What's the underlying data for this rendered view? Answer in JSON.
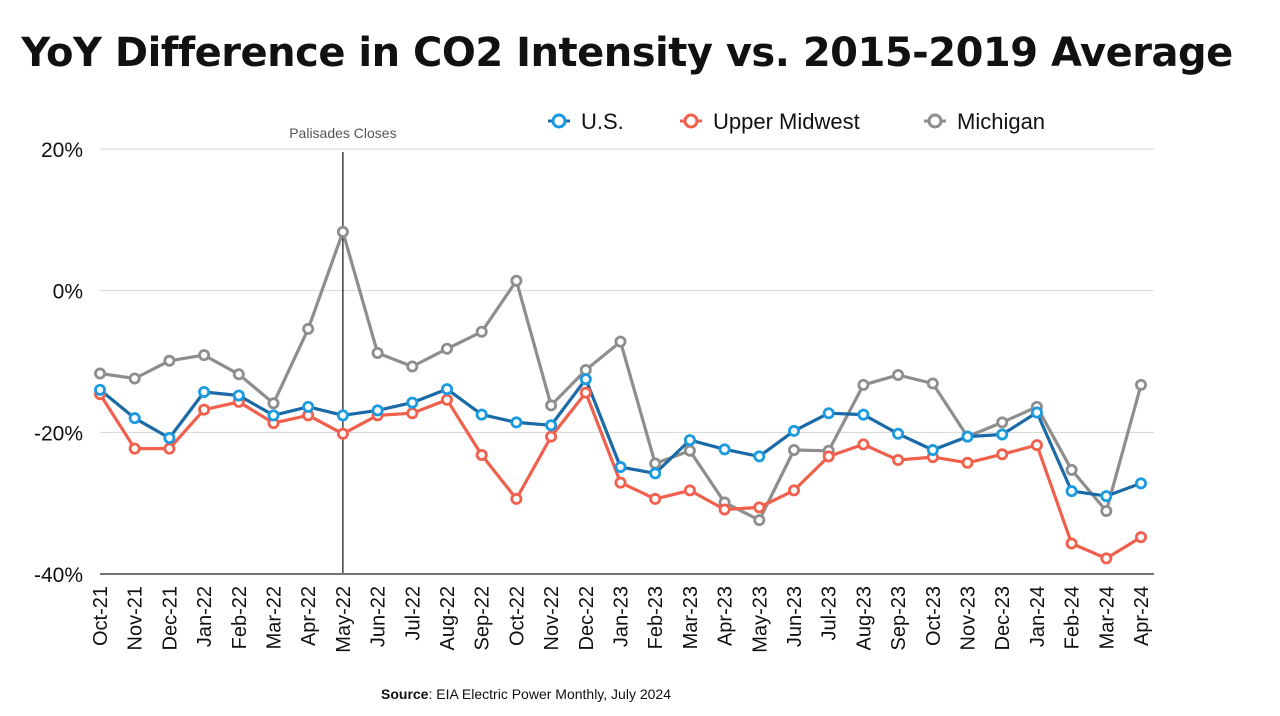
{
  "chart_data": {
    "type": "line",
    "title": "YoY Difference in CO2 Intensity vs. 2015-2019 Average",
    "categories": [
      "Oct-21",
      "Nov-21",
      "Dec-21",
      "Jan-22",
      "Feb-22",
      "Mar-22",
      "Apr-22",
      "May-22",
      "Jun-22",
      "Jul-22",
      "Aug-22",
      "Sep-22",
      "Oct-22",
      "Nov-22",
      "Dec-22",
      "Jan-23",
      "Feb-23",
      "Mar-23",
      "Apr-23",
      "May-23",
      "Jun-23",
      "Jul-23",
      "Aug-23",
      "Sep-23",
      "Oct-23",
      "Nov-23",
      "Dec-23",
      "Jan-24",
      "Feb-24",
      "Mar-24",
      "Apr-24"
    ],
    "series": [
      {
        "name": "U.S.",
        "color": "#1a9be0",
        "line_color": "#1b6aa8",
        "values": [
          -14,
          -18,
          -20.8,
          -14.3,
          -14.8,
          -17.6,
          -16.4,
          -17.6,
          -16.9,
          -15.8,
          -13.9,
          -17.5,
          -18.6,
          -19,
          -12.5,
          -24.9,
          -25.8,
          -21.1,
          -22.4,
          -23.4,
          -19.8,
          -17.3,
          -17.5,
          -20.2,
          -22.5,
          -20.6,
          -20.3,
          -17.2,
          -28.3,
          -29,
          -27.2
        ]
      },
      {
        "name": "Upper Midwest",
        "color": "#f0604d",
        "line_color": "#f0604d",
        "values": [
          -14.6,
          -22.3,
          -22.3,
          -16.8,
          -15.7,
          -18.7,
          -17.6,
          -20.2,
          -17.6,
          -17.3,
          -15.4,
          -23.2,
          -29.4,
          -20.6,
          -14.4,
          -27.1,
          -29.4,
          -28.2,
          -30.9,
          -30.6,
          -28.2,
          -23.4,
          -21.7,
          -23.9,
          -23.5,
          -24.3,
          -23.1,
          -21.8,
          -35.7,
          -37.8,
          -34.8
        ]
      },
      {
        "name": "Michigan",
        "color": "#8e8e8e",
        "line_color": "#8e8e8e",
        "values": [
          -11.7,
          -12.4,
          -9.9,
          -9.1,
          -11.8,
          -15.9,
          -5.4,
          8.3,
          -8.8,
          -10.7,
          -8.2,
          -5.8,
          1.4,
          -16.2,
          -11.2,
          -7.2,
          -24.4,
          -22.6,
          -29.9,
          -32.4,
          -22.5,
          -22.6,
          -13.3,
          -11.9,
          -13.1,
          -20.6,
          -18.6,
          -16.4,
          -25.3,
          -31.1,
          -13.3
        ]
      }
    ],
    "y_ticks": [
      "20%",
      "0%",
      "-20%",
      "-40%"
    ],
    "y_tick_values": [
      20,
      0,
      -20,
      -40
    ],
    "ylim": [
      -40,
      20
    ],
    "grid": true,
    "legend": "top",
    "annotation": {
      "label": "Palisades Closes",
      "category": "May-22"
    }
  },
  "source": {
    "label": "Source",
    "text": ": EIA Electric Power Monthly, July 2024"
  }
}
